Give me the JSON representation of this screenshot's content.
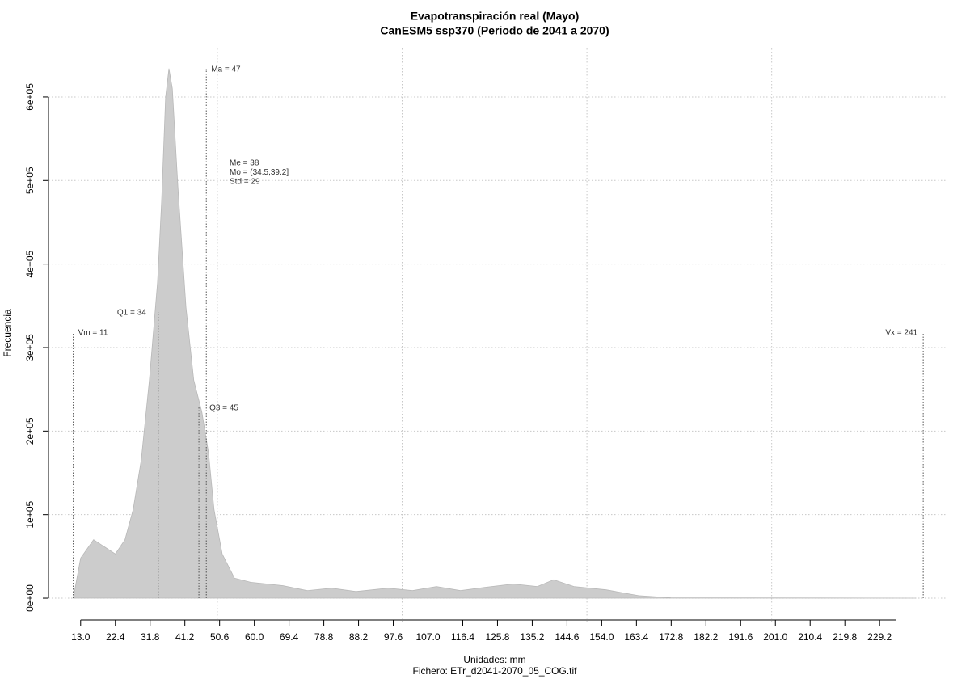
{
  "chart_data": {
    "type": "area",
    "title": "Evapotranspiración real (Mayo)",
    "subtitle": "CanESM5 ssp370 (Periodo de 2041 a 2070)",
    "x_label": "Unidades: mm",
    "caption": "Fichero: ETr_d2041-2070_05_COG.tif",
    "y_label": "Frecuencia",
    "color": "#cccccc",
    "x": [
      11,
      13,
      16.5,
      22.4,
      25,
      27.2,
      29.4,
      31.6,
      33.8,
      34.9,
      36,
      36.9,
      37.8,
      39.3,
      41.5,
      43.6,
      45.8,
      47.6,
      49.1,
      51.3,
      54.6,
      59,
      67.7,
      74.3,
      80.9,
      87.5,
      96.2,
      102.8,
      109.3,
      115.8,
      122.4,
      130,
      136.6,
      141,
      146.5,
      155.2,
      164,
      172.7,
      238.9
    ],
    "values": [
      0,
      48000,
      70000,
      53000,
      70000,
      106000,
      165000,
      261000,
      378000,
      474000,
      600000,
      634000,
      610000,
      494000,
      348000,
      261000,
      223000,
      174000,
      106000,
      53000,
      24000,
      19000,
      15000,
      9000,
      12000,
      8000,
      12000,
      9000,
      14000,
      9000,
      13000,
      17000,
      14000,
      22000,
      14000,
      10000,
      3000,
      500,
      0
    ],
    "xlim": [
      4.3,
      247.1
    ],
    "ylim": [
      -29000,
      658000
    ],
    "xticks": [
      {
        "value": 13,
        "label": "13.0"
      },
      22.4,
      31.8,
      41.2,
      50.6,
      {
        "value": 60,
        "label": "60.0"
      },
      69.4,
      78.8,
      88.2,
      97.6,
      {
        "value": 107,
        "label": "107.0"
      },
      116.4,
      125.8,
      135.2,
      144.6,
      {
        "value": 154,
        "label": "154.0"
      },
      163.4,
      172.8,
      182.2,
      191.6,
      {
        "value": 201,
        "label": "201.0"
      },
      210.4,
      219.8,
      229.2
    ],
    "yticks": [
      {
        "value": 0,
        "label": "0e+00"
      },
      {
        "value": 100000,
        "label": "1e+05"
      },
      {
        "value": 200000,
        "label": "2e+05"
      },
      {
        "value": 300000,
        "label": "3e+05"
      },
      {
        "value": 400000,
        "label": "4e+05"
      },
      {
        "value": 500000,
        "label": "5e+05"
      },
      {
        "value": 600000,
        "label": "6e+05"
      }
    ],
    "xgrid": [
      50,
      100,
      150,
      200
    ],
    "grid": true,
    "markers": [
      {
        "text": "Vm = 11",
        "x": 11
      },
      {
        "text": "Q1 = 34",
        "x": 34
      },
      {
        "text": "Q3 = 45",
        "x": 45
      },
      {
        "text": "Ma = 47",
        "x": 47
      },
      {
        "text": "Vx = 241",
        "x": 241
      }
    ],
    "stats": [
      "Me = 38",
      "Mo = (34.5,39.2]",
      "Std = 29"
    ]
  }
}
